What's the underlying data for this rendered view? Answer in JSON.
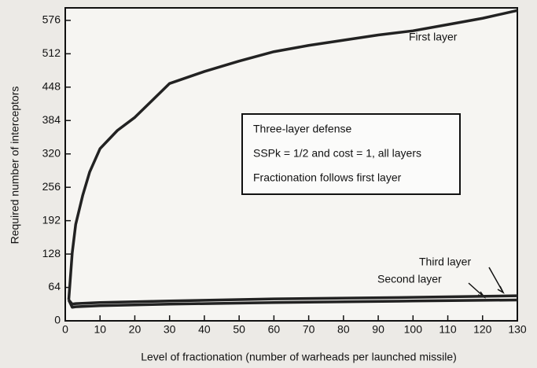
{
  "chart_data": {
    "type": "line",
    "x_label": "Level of fractionation (number of warheads per launched missile)",
    "y_label": "Required number of interceptors",
    "annotations": [
      "First layer",
      "Three-layer defense",
      "SSPk = 1/2 and cost = 1, all layers",
      "Fractionation follows first layer",
      "Third layer",
      "Second layer"
    ],
    "series": [
      {
        "name": "First layer",
        "color": "#222222",
        "x": [
          1,
          2,
          3,
          5,
          7,
          10,
          15,
          20,
          30,
          40,
          50,
          60,
          70,
          80,
          90,
          100,
          110,
          120,
          130
        ],
        "values": [
          40,
          130,
          185,
          240,
          285,
          330,
          365,
          390,
          455,
          478,
          498,
          516,
          528,
          538,
          548,
          556,
          568,
          580,
          595
        ]
      },
      {
        "name": "Second layer",
        "color": "#222222",
        "x": [
          1,
          2,
          3,
          10,
          30,
          60,
          100,
          130
        ],
        "values": [
          40,
          26,
          27,
          29,
          32,
          35,
          38,
          40
        ]
      },
      {
        "name": "Third layer",
        "color": "#222222",
        "x": [
          1,
          2,
          3,
          10,
          30,
          60,
          100,
          130
        ],
        "values": [
          40,
          32,
          33,
          35,
          38,
          42,
          45,
          48
        ]
      }
    ],
    "xlim": [
      0,
      130
    ],
    "xticks": [
      0,
      10,
      20,
      30,
      40,
      50,
      60,
      70,
      80,
      90,
      100,
      110,
      120,
      130
    ],
    "ylim": [
      0,
      600
    ],
    "yticks": [
      0,
      64,
      128,
      192,
      256,
      320,
      384,
      448,
      512,
      576
    ]
  }
}
